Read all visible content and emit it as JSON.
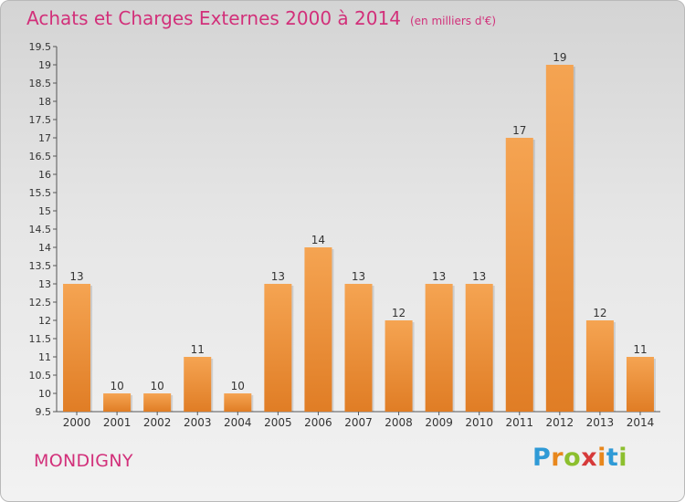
{
  "title": "Achats et Charges Externes 2000 à 2014",
  "subtitle": "(en milliers d'€)",
  "place": "MONDIGNY",
  "brand": {
    "letters": [
      "P",
      "r",
      "o",
      "x",
      "i",
      "t",
      "i"
    ],
    "colors": [
      "#2f9ad6",
      "#e8871c",
      "#8cbf2e",
      "#d63a3a",
      "#e8871c",
      "#2f9ad6",
      "#8cbf2e"
    ]
  },
  "colors": {
    "title": "#d2307a",
    "bar_light": "#f5a452",
    "bar_dark": "#e07d25"
  },
  "chart_data": {
    "type": "bar",
    "title": "Achats et Charges Externes 2000 à 2014",
    "subtitle": "(en milliers d'€)",
    "categories": [
      "2000",
      "2001",
      "2002",
      "2003",
      "2004",
      "2005",
      "2006",
      "2007",
      "2008",
      "2009",
      "2010",
      "2011",
      "2012",
      "2013",
      "2014"
    ],
    "values": [
      13,
      10,
      10,
      11,
      10,
      13,
      14,
      13,
      12,
      13,
      13,
      17,
      19,
      12,
      11
    ],
    "data_labels": [
      "13",
      "10",
      "10",
      "11",
      "10",
      "13",
      "14",
      "13",
      "12",
      "13",
      "13",
      "17",
      "19",
      "12",
      "11"
    ],
    "ylim": [
      9.5,
      19.5
    ],
    "yticks": [
      "9.5",
      "10",
      "10.5",
      "11",
      "11.5",
      "12",
      "12.5",
      "13",
      "13.5",
      "14",
      "14.5",
      "15",
      "15.5",
      "16",
      "16.5",
      "17",
      "17.5",
      "18",
      "18.5",
      "19",
      "19.5"
    ],
    "grid": false,
    "legend": "none"
  }
}
